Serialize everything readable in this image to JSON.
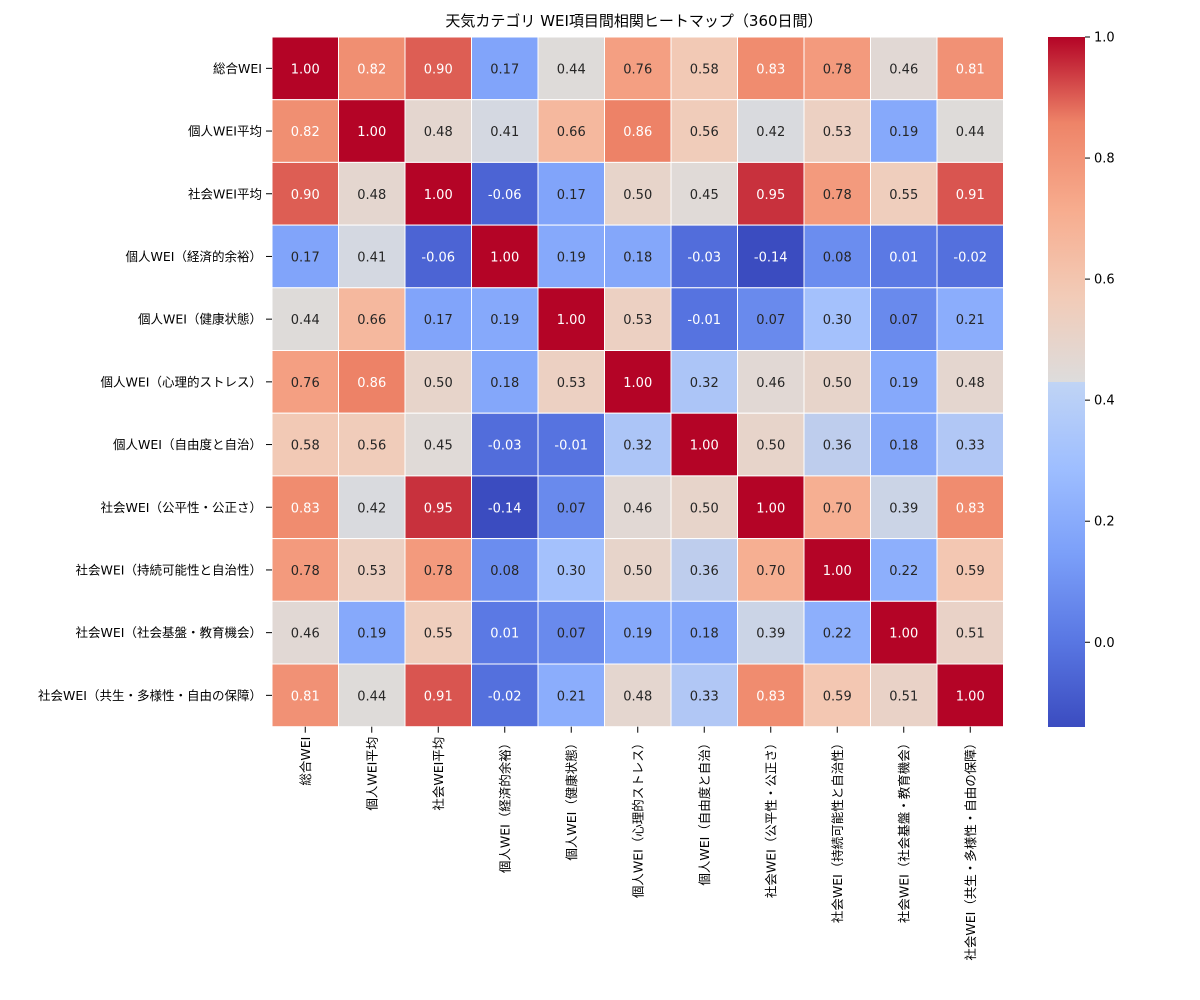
{
  "chart_data": {
    "type": "heatmap",
    "title": "天気カテゴリ WEI項目間相関ヒートマップ（360日間）",
    "labels": [
      "総合WEI",
      "個人WEI平均",
      "社会WEI平均",
      "個人WEI（経済的余裕）",
      "個人WEI（健康状態）",
      "個人WEI（心理的ストレス）",
      "個人WEI（自由度と自治）",
      "社会WEI（公平性・公正さ）",
      "社会WEI（持続可能性と自治性）",
      "社会WEI（社会基盤・教育機会）",
      "社会WEI（共生・多様性・自由の保障）"
    ],
    "values": [
      [
        1.0,
        0.82,
        0.9,
        0.17,
        0.44,
        0.76,
        0.58,
        0.83,
        0.78,
        0.46,
        0.81
      ],
      [
        0.82,
        1.0,
        0.48,
        0.41,
        0.66,
        0.86,
        0.56,
        0.42,
        0.53,
        0.19,
        0.44
      ],
      [
        0.9,
        0.48,
        1.0,
        -0.06,
        0.17,
        0.5,
        0.45,
        0.95,
        0.78,
        0.55,
        0.91
      ],
      [
        0.17,
        0.41,
        -0.06,
        1.0,
        0.19,
        0.18,
        -0.03,
        -0.14,
        0.08,
        0.01,
        -0.02
      ],
      [
        0.44,
        0.66,
        0.17,
        0.19,
        1.0,
        0.53,
        -0.01,
        0.07,
        0.3,
        0.07,
        0.21
      ],
      [
        0.76,
        0.86,
        0.5,
        0.18,
        0.53,
        1.0,
        0.32,
        0.46,
        0.5,
        0.19,
        0.48
      ],
      [
        0.58,
        0.56,
        0.45,
        -0.03,
        -0.01,
        0.32,
        1.0,
        0.5,
        0.36,
        0.18,
        0.33
      ],
      [
        0.83,
        0.42,
        0.95,
        -0.14,
        0.07,
        0.46,
        0.5,
        1.0,
        0.7,
        0.39,
        0.83
      ],
      [
        0.78,
        0.53,
        0.78,
        0.08,
        0.3,
        0.5,
        0.36,
        0.7,
        1.0,
        0.22,
        0.59
      ],
      [
        0.46,
        0.19,
        0.55,
        0.01,
        0.07,
        0.19,
        0.18,
        0.39,
        0.22,
        1.0,
        0.51
      ],
      [
        0.81,
        0.44,
        0.91,
        -0.02,
        0.21,
        0.48,
        0.33,
        0.83,
        0.59,
        0.51,
        1.0
      ]
    ],
    "colormap": "coolwarm",
    "vmin": -0.14,
    "vmax": 1.0,
    "colorbar_ticks": [
      "0.0",
      "0.2",
      "0.4",
      "0.6",
      "0.8",
      "1.0"
    ]
  }
}
